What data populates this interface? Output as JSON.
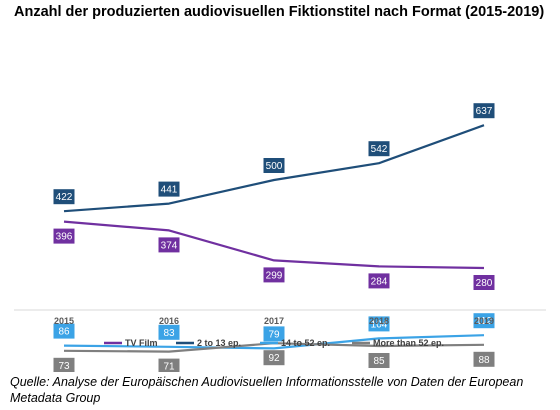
{
  "title": "Anzahl der produzierten audiovisuellen Fiktionstitel nach Format (2015-2019)",
  "source": "Quelle: Analyse der Europäischen Audiovisuellen Informationsstelle von Daten der European Metadata Group",
  "chart_data": {
    "type": "line",
    "title": "Anzahl der produzierten audiovisuellen Fiktionstitel nach Format (2015-2019)",
    "x": [
      "2015",
      "2016",
      "2017",
      "2018",
      "2019"
    ],
    "xlabel": "",
    "ylabel": "",
    "ylim": [
      0,
      700
    ],
    "grid": false,
    "legend_position": "bottom",
    "series": [
      {
        "name": "TV Film",
        "values": [
          396,
          374,
          299,
          284,
          280
        ],
        "color": "#7030a0"
      },
      {
        "name": "2 to 13 ep.",
        "values": [
          422,
          441,
          500,
          542,
          637
        ],
        "color": "#1f4e79"
      },
      {
        "name": "14 to 52 ep.",
        "values": [
          86,
          83,
          79,
          104,
          112
        ],
        "color": "#3ba3e6"
      },
      {
        "name": "More than 52 ep.",
        "values": [
          73,
          71,
          92,
          85,
          88
        ],
        "color": "#7f7f7f"
      }
    ]
  }
}
